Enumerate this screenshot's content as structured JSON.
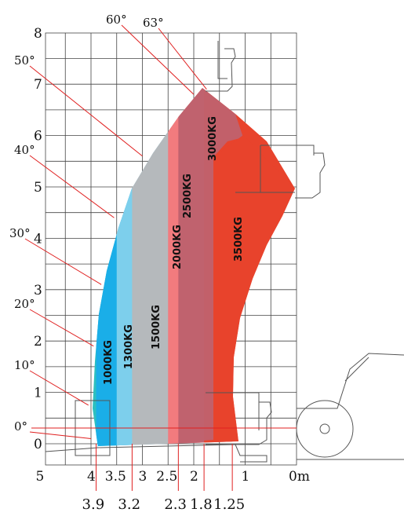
{
  "chart_data": {
    "type": "area",
    "title": "",
    "xlabel": "",
    "ylabel": "",
    "x_axis": {
      "unit_label": "0m",
      "ticks": [
        {
          "value": 5,
          "label": "5"
        },
        {
          "value": 4,
          "label": "4"
        },
        {
          "value": 3.5,
          "label": "3.5"
        },
        {
          "value": 3,
          "label": "3"
        },
        {
          "value": 2.5,
          "label": "2.5"
        },
        {
          "value": 2,
          "label": "2"
        },
        {
          "value": 1,
          "label": "1"
        },
        {
          "value": 0,
          "label": "0m"
        }
      ],
      "lower_labels": [
        {
          "value": 3.9,
          "label": "3.9"
        },
        {
          "value": 3.2,
          "label": "3.2"
        },
        {
          "value": 2.3,
          "label": "2.3"
        },
        {
          "value": 1.8,
          "label": "1.8"
        },
        {
          "value": 1.25,
          "label": "1.25"
        }
      ]
    },
    "y_axis": {
      "ticks": [
        {
          "value": 8,
          "label": "8"
        },
        {
          "value": 7,
          "label": "7"
        },
        {
          "value": 6,
          "label": "6"
        },
        {
          "value": 5,
          "label": "5"
        },
        {
          "value": 4,
          "label": "4"
        },
        {
          "value": 3,
          "label": "3"
        },
        {
          "value": 2,
          "label": "2"
        },
        {
          "value": 1,
          "label": "1"
        },
        {
          "value": 0,
          "label": "0"
        }
      ]
    },
    "angles": [
      {
        "label": "0°",
        "x": 4.0,
        "y": 0.1
      },
      {
        "label": "10°",
        "x": 4.05,
        "y": 0.75
      },
      {
        "label": "20°",
        "x": 3.95,
        "y": 1.9
      },
      {
        "label": "30°",
        "x": 3.8,
        "y": 3.1
      },
      {
        "label": "40°",
        "x": 3.55,
        "y": 4.4
      },
      {
        "label": "50°",
        "x": 3.0,
        "y": 5.6
      },
      {
        "label": "60°",
        "x": 2.0,
        "y": 6.8
      },
      {
        "label": "63°",
        "x": 1.75,
        "y": 6.9
      }
    ],
    "zones": [
      {
        "label": "1000KG",
        "max_reach": 3.9,
        "color": "#2ebfbf"
      },
      {
        "label": "1300KG",
        "max_reach": 3.5,
        "color": "#1aaee8"
      },
      {
        "label": "1500KG",
        "max_reach": 3.2,
        "color": "#7dcfec"
      },
      {
        "label": "2000KG",
        "max_reach": 2.5,
        "color": "#b5b9bc"
      },
      {
        "label": "2500KG",
        "max_reach": 2.3,
        "color": "#f27b7e"
      },
      {
        "label": "3000KG",
        "max_reach": 1.8,
        "color": "#c0626e"
      },
      {
        "label": "3500KG",
        "max_reach": 1.25,
        "color": "#e8432c"
      }
    ],
    "xlim": [
      5,
      0
    ],
    "ylim": [
      -0.4,
      8
    ],
    "grid": true
  }
}
